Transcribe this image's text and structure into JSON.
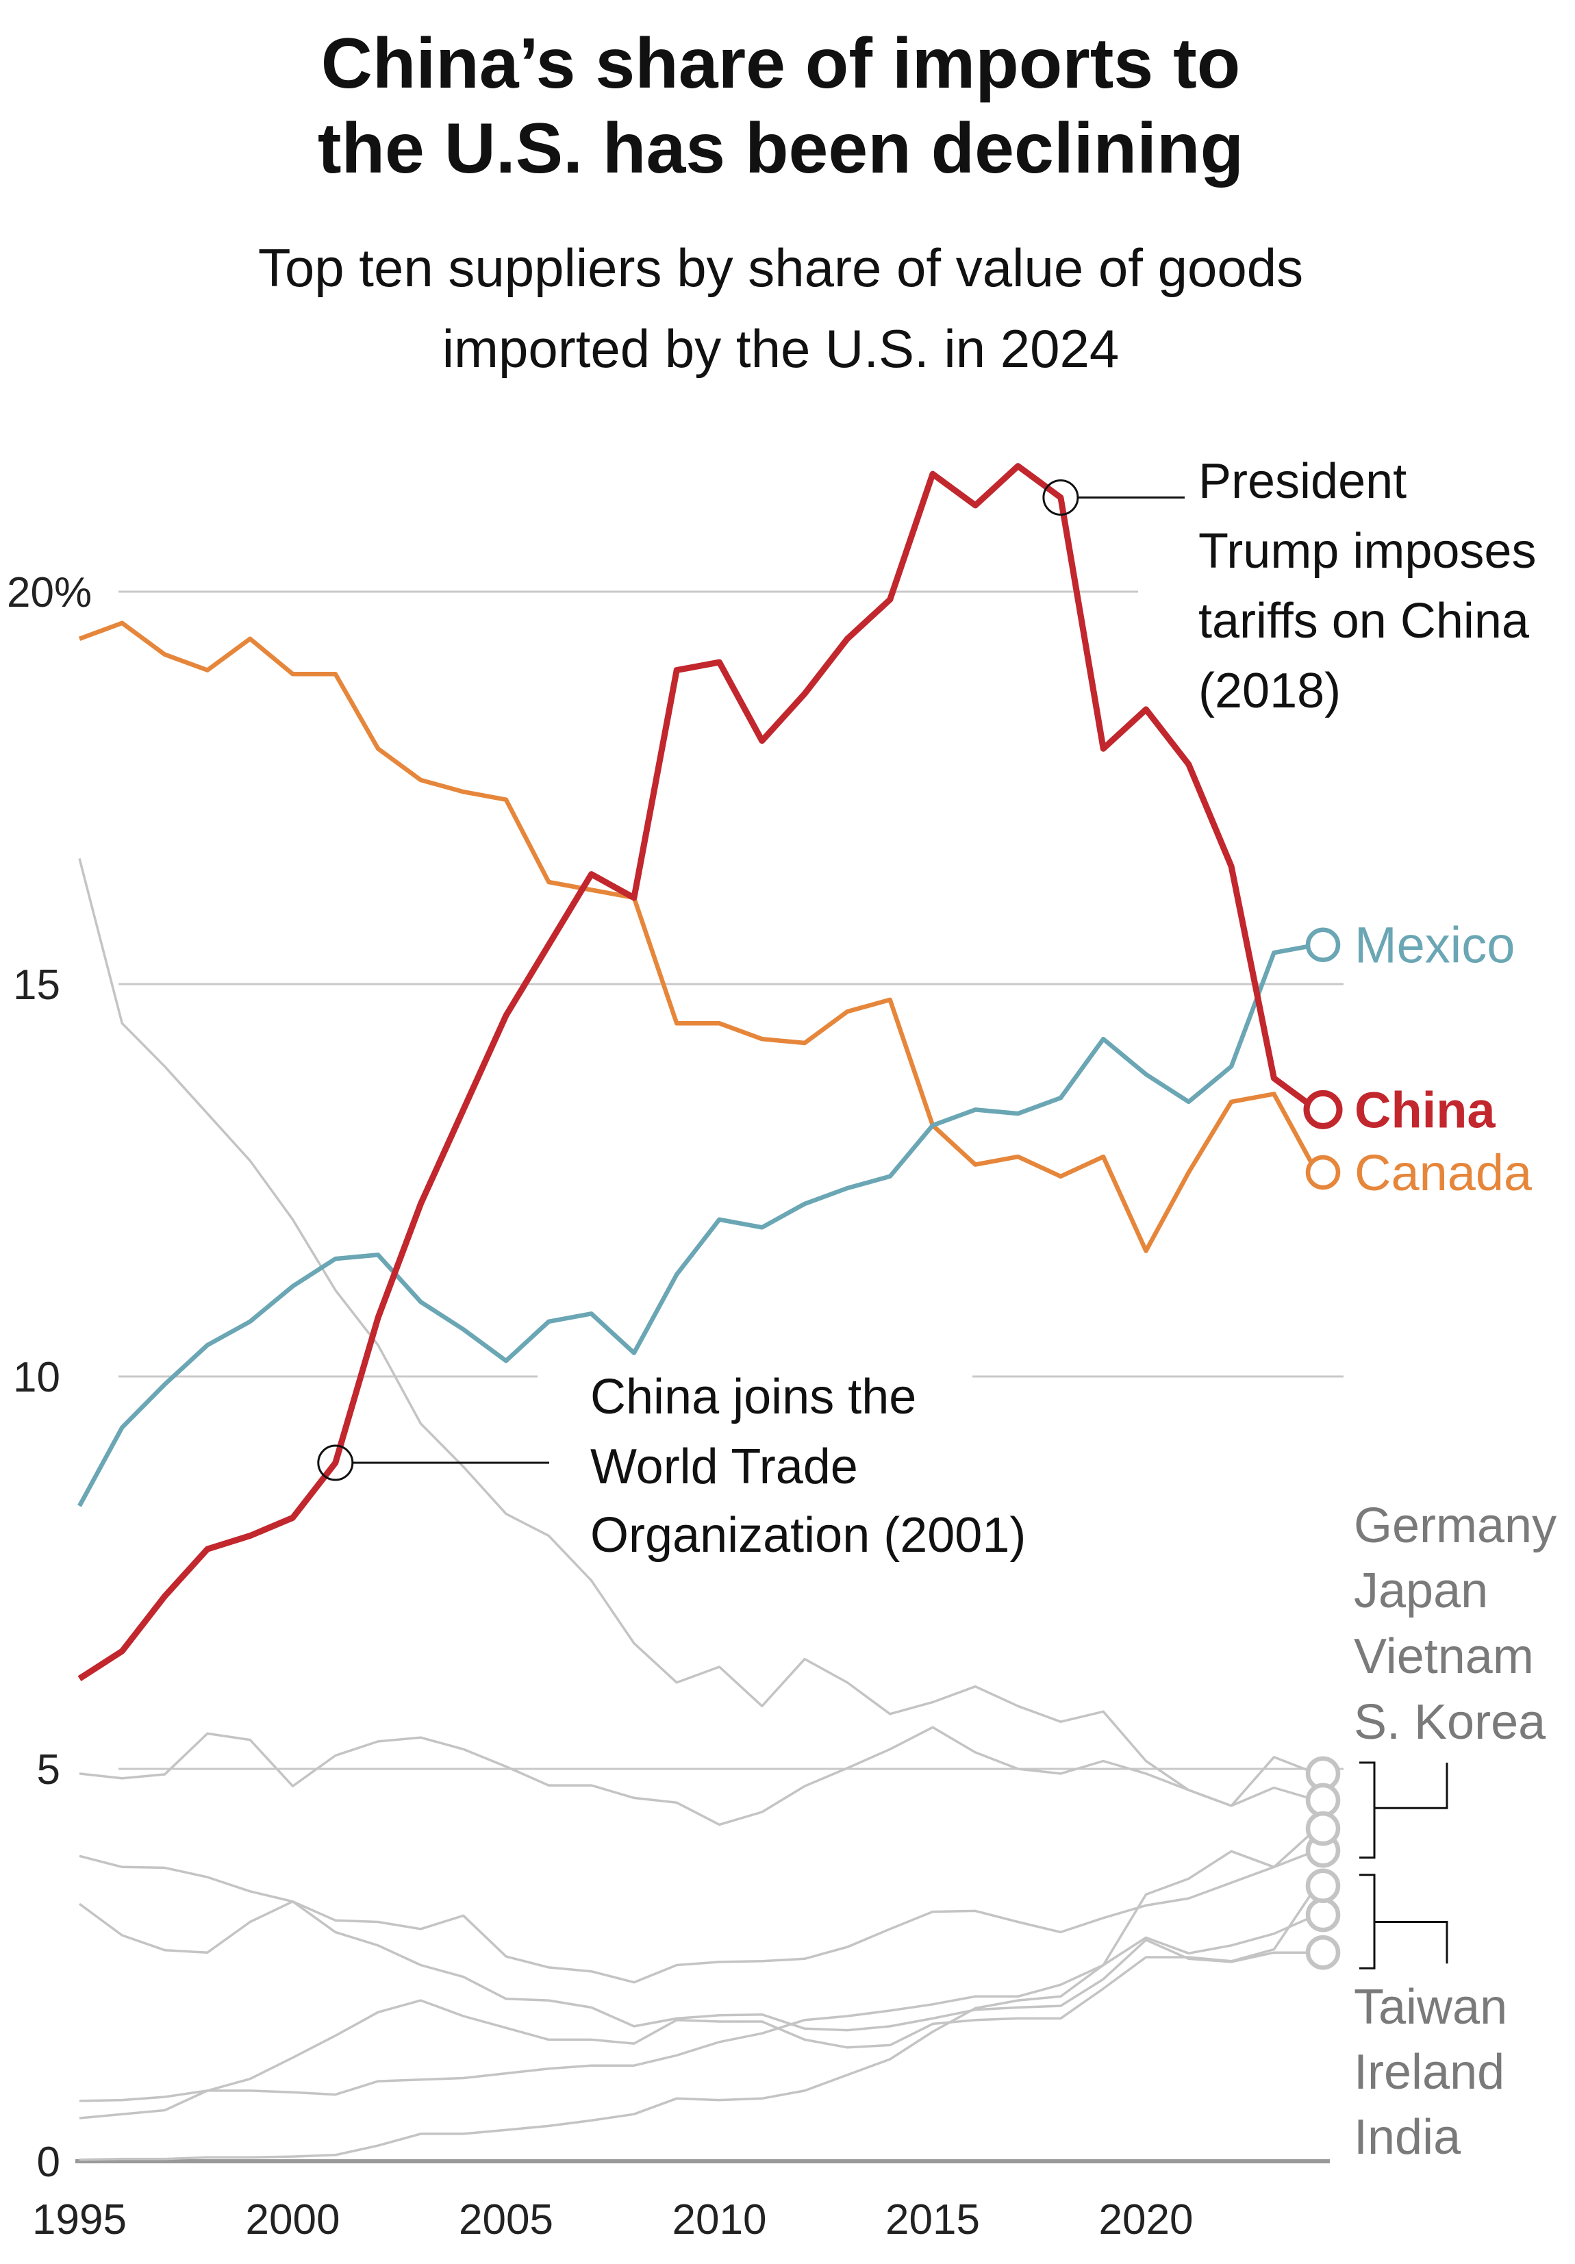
{
  "chart_data": {
    "type": "line",
    "title": "China’s share of imports to the U.S. has been declining",
    "title_lines": [
      "China’s share of imports to",
      "the U.S. has been declining"
    ],
    "subtitle_lines": [
      "Top ten suppliers by share of value of goods",
      "imported by the U.S. in 2024"
    ],
    "xlabel": "",
    "ylabel": "",
    "xlim": [
      1995,
      2024
    ],
    "ylim": [
      0,
      22
    ],
    "grid": true,
    "x_ticks": [
      "1995",
      "2000",
      "2005",
      "2010",
      "2015",
      "2020"
    ],
    "y_ticks": [
      {
        "value": 0,
        "label": "0"
      },
      {
        "value": 5,
        "label": "5"
      },
      {
        "value": 10,
        "label": "10"
      },
      {
        "value": 15,
        "label": "15"
      },
      {
        "value": 20,
        "label": "20%"
      }
    ],
    "x": [
      1995,
      1996,
      1997,
      1998,
      1999,
      2000,
      2001,
      2002,
      2003,
      2004,
      2005,
      2006,
      2007,
      2008,
      2009,
      2010,
      2011,
      2012,
      2013,
      2014,
      2015,
      2016,
      2017,
      2018,
      2019,
      2020,
      2021,
      2022,
      2023,
      2024
    ],
    "series": [
      {
        "name": "China",
        "color": "#c1272d",
        "highlight": true,
        "values": [
          6.15,
          6.5,
          7.2,
          7.8,
          7.97,
          8.2,
          8.9,
          10.75,
          12.2,
          13.4,
          14.6,
          15.5,
          16.4,
          16.1,
          19.0,
          19.1,
          18.1,
          18.7,
          19.4,
          19.9,
          21.5,
          21.1,
          21.6,
          21.2,
          18.0,
          18.5,
          17.8,
          16.5,
          13.8,
          13.4
        ]
      },
      {
        "name": "Canada",
        "color": "#e6863b",
        "values": [
          19.4,
          19.6,
          19.2,
          19.0,
          19.4,
          18.95,
          18.95,
          18.0,
          17.6,
          17.45,
          17.35,
          16.3,
          16.2,
          16.1,
          14.5,
          14.5,
          14.3,
          14.25,
          14.65,
          14.8,
          13.2,
          12.7,
          12.8,
          12.55,
          12.8,
          11.6,
          12.6,
          13.5,
          13.6,
          12.6
        ]
      },
      {
        "name": "Mexico",
        "color": "#6aa6b4",
        "values": [
          8.35,
          9.35,
          9.9,
          10.4,
          10.7,
          11.15,
          11.5,
          11.55,
          10.95,
          10.6,
          10.2,
          10.7,
          10.8,
          10.3,
          11.3,
          12.0,
          11.9,
          12.2,
          12.4,
          12.55,
          13.2,
          13.4,
          13.35,
          13.55,
          14.3,
          13.85,
          13.5,
          13.95,
          15.4,
          15.5
        ]
      },
      {
        "color": "#c4c4c4",
        "values": [
          16.6,
          14.5,
          13.95,
          13.35,
          12.75,
          12.0,
          11.1,
          10.4,
          9.4,
          8.85,
          8.25,
          7.97,
          7.4,
          6.6,
          6.1,
          6.3,
          5.8,
          6.4,
          6.1,
          5.7,
          5.85,
          6.05,
          5.8,
          5.6,
          5.73,
          5.1,
          4.73,
          4.53,
          5.15,
          4.94
        ]
      },
      {
        "color": "#c4c4c4",
        "values": [
          4.94,
          4.88,
          4.93,
          5.45,
          5.37,
          4.78,
          5.17,
          5.35,
          5.4,
          5.25,
          5.03,
          4.79,
          4.79,
          4.63,
          4.57,
          4.29,
          4.45,
          4.78,
          5.01,
          5.25,
          5.53,
          5.21,
          5.0,
          4.94,
          5.1,
          4.94,
          4.73,
          4.53,
          4.76,
          4.6
        ]
      },
      {
        "color": "#c4c4c4",
        "values": [
          3.89,
          3.75,
          3.74,
          3.62,
          3.44,
          3.31,
          2.92,
          2.75,
          2.5,
          2.35,
          2.07,
          2.05,
          1.96,
          1.72,
          1.82,
          1.86,
          1.87,
          1.69,
          1.67,
          1.72,
          1.82,
          1.93,
          1.96,
          1.98,
          2.32,
          2.82,
          2.58,
          2.54,
          2.66,
          2.66
        ]
      },
      {
        "color": "#c4c4c4",
        "values": [
          3.28,
          2.88,
          2.69,
          2.66,
          3.05,
          3.31,
          3.07,
          3.05,
          2.96,
          3.13,
          2.61,
          2.47,
          2.42,
          2.28,
          2.5,
          2.54,
          2.55,
          2.58,
          2.73,
          2.96,
          3.18,
          3.19,
          3.05,
          2.92,
          3.1,
          3.26,
          3.35,
          3.55,
          3.75,
          3.96
        ]
      },
      {
        "color": "#c4c4c4",
        "values": [
          0.02,
          0.03,
          0.03,
          0.05,
          0.05,
          0.06,
          0.08,
          0.2,
          0.35,
          0.35,
          0.4,
          0.45,
          0.52,
          0.6,
          0.8,
          0.78,
          0.8,
          0.9,
          1.1,
          1.3,
          1.65,
          1.95,
          2.05,
          2.1,
          2.5,
          3.4,
          3.6,
          3.95,
          3.75,
          4.24
        ]
      },
      {
        "color": "#c4c4c4",
        "values": [
          0.77,
          0.78,
          0.82,
          0.9,
          0.9,
          0.88,
          0.85,
          1.02,
          1.04,
          1.06,
          1.12,
          1.18,
          1.22,
          1.22,
          1.35,
          1.52,
          1.63,
          1.8,
          1.85,
          1.92,
          2.0,
          2.1,
          2.1,
          2.25,
          2.5,
          2.85,
          2.65,
          2.75,
          2.9,
          3.14
        ]
      },
      {
        "color": "#c4c4c4",
        "values": [
          0.55,
          0.6,
          0.65,
          0.9,
          1.05,
          1.32,
          1.6,
          1.9,
          2.05,
          1.85,
          1.7,
          1.55,
          1.55,
          1.5,
          1.8,
          1.78,
          1.78,
          1.55,
          1.45,
          1.48,
          1.75,
          1.8,
          1.82,
          1.82,
          2.2,
          2.6,
          2.6,
          2.55,
          2.7,
          3.51
        ]
      }
    ],
    "end_labels": {
      "mexico": "Mexico",
      "china": "China",
      "canada": "Canada"
    },
    "group_labels_upper": [
      "Germany",
      "Japan",
      "Vietnam",
      "S. Korea"
    ],
    "group_labels_lower": [
      "Taiwan",
      "Ireland",
      "India"
    ],
    "annotations": [
      {
        "year": 2018,
        "series": "China",
        "lines": [
          "President",
          "Trump imposes",
          "tariffs on China",
          "(2018)"
        ]
      },
      {
        "year": 2001,
        "series": "China",
        "lines": [
          "China joins the",
          "World Trade",
          "Organization (2001)"
        ]
      }
    ]
  }
}
